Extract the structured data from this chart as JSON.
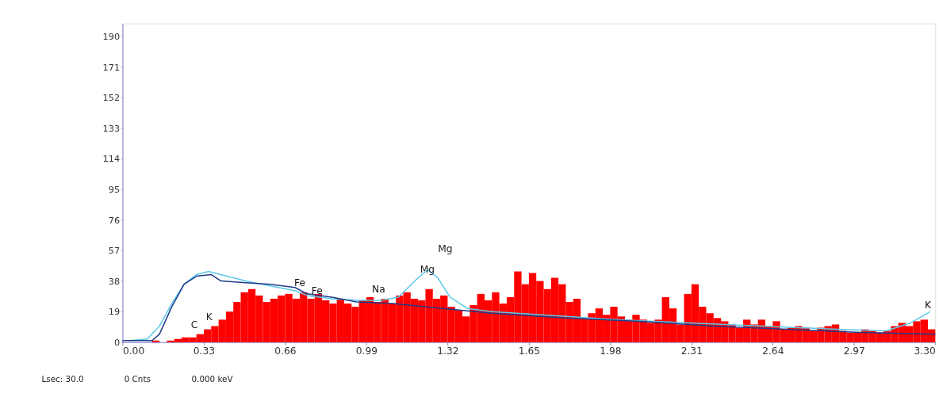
{
  "chart_data": {
    "type": "histogram",
    "xlim": [
      0,
      3.3
    ],
    "ylim": [
      0,
      198
    ],
    "xticks": [
      {
        "value": 0,
        "label": "0.00"
      },
      0.33,
      0.66,
      0.99,
      1.32,
      1.65,
      1.98,
      2.31,
      2.64,
      2.97,
      {
        "value": 3.3,
        "label": "3.30"
      }
    ],
    "yticks": [
      0,
      19,
      38,
      57,
      76,
      95,
      114,
      133,
      152,
      171,
      190
    ],
    "grid": false,
    "color": "#ff0000",
    "bins": [
      0,
      0.03,
      0.06,
      0.09,
      0.12,
      0.15,
      0.18,
      0.21,
      0.24,
      0.27,
      0.3,
      0.33,
      0.36,
      0.39,
      0.42,
      0.45,
      0.48,
      0.51,
      0.54,
      0.57,
      0.6,
      0.63,
      0.66,
      0.69,
      0.72,
      0.75,
      0.78,
      0.81,
      0.84,
      0.87,
      0.9,
      0.93,
      0.96,
      0.99,
      1.02,
      1.05,
      1.08,
      1.11,
      1.14,
      1.17,
      1.2,
      1.23,
      1.26,
      1.29,
      1.32,
      1.35,
      1.38,
      1.41,
      1.44,
      1.47,
      1.5,
      1.53,
      1.56,
      1.59,
      1.62,
      1.65,
      1.68,
      1.71,
      1.74,
      1.77,
      1.8,
      1.83,
      1.86,
      1.89,
      1.92,
      1.95,
      1.98,
      2.01,
      2.04,
      2.07,
      2.1,
      2.13,
      2.16,
      2.19,
      2.22,
      2.25,
      2.28,
      2.31,
      2.34,
      2.37,
      2.4,
      2.43,
      2.46,
      2.49,
      2.52,
      2.55,
      2.58,
      2.61,
      2.64,
      2.67,
      2.7,
      2.73,
      2.76,
      2.79,
      2.82,
      2.85,
      2.88,
      2.91,
      2.94,
      2.97,
      3.0,
      3.03,
      3.06,
      3.09,
      3.12,
      3.15,
      3.18,
      3.21,
      3.24,
      3.27,
      3.3
    ],
    "values": [
      0,
      0,
      0,
      0,
      1,
      0,
      1,
      2,
      3,
      3,
      5,
      8,
      10,
      14,
      19,
      25,
      31,
      33,
      29,
      25,
      27,
      29,
      30,
      27,
      31,
      27,
      30,
      26,
      24,
      27,
      24,
      22,
      26,
      28,
      25,
      27,
      24,
      29,
      31,
      27,
      26,
      33,
      27,
      29,
      22,
      20,
      16,
      23,
      30,
      26,
      31,
      24,
      28,
      44,
      36,
      43,
      38,
      33,
      40,
      36,
      25,
      27,
      15,
      18,
      21,
      17,
      22,
      16,
      14,
      17,
      14,
      12,
      14,
      28,
      21,
      11,
      30,
      36,
      22,
      18,
      15,
      13,
      11,
      9,
      14,
      11,
      14,
      10,
      13,
      8,
      9,
      10,
      9,
      7,
      9,
      10,
      11,
      7,
      6,
      6,
      8,
      7,
      6,
      7,
      10,
      12,
      10,
      13,
      14,
      8
    ],
    "series": [
      {
        "type": "line",
        "color": "#5bc8e8",
        "x": [
          0.03,
          0.1,
          0.15,
          0.2,
          0.25,
          0.3,
          0.35,
          0.4,
          0.5,
          0.6,
          0.7,
          0.75,
          0.85,
          0.95,
          1.05,
          1.12,
          1.2,
          1.24,
          1.28,
          1.33,
          1.4,
          1.5,
          1.7,
          2.0,
          2.3,
          2.6,
          2.9,
          3.1,
          3.2,
          3.28
        ],
        "values": [
          1,
          2,
          10,
          24,
          36,
          42,
          44,
          42,
          38,
          35,
          32,
          29,
          27,
          26,
          26,
          28,
          40,
          45,
          40,
          28,
          21,
          19,
          17,
          14,
          12,
          10,
          8,
          7,
          12,
          19
        ]
      },
      {
        "type": "line",
        "color": "#1f3c88",
        "x": [
          0,
          0.12,
          0.15,
          0.2,
          0.25,
          0.3,
          0.36,
          0.4,
          0.5,
          0.6,
          0.7,
          0.75,
          0.85,
          0.95,
          1.1,
          1.3,
          1.5,
          1.8,
          2.1,
          2.4,
          2.7,
          3.0,
          3.3
        ],
        "values": [
          1,
          1,
          5,
          22,
          36,
          41,
          42,
          38,
          37,
          36,
          34,
          30,
          28,
          25,
          24,
          21,
          18,
          15,
          13,
          10,
          8,
          6,
          5
        ]
      }
    ],
    "annotations": [
      "C",
      "K",
      "Mg",
      "Mg",
      {
        "text": "Fe",
        "x": 0.72,
        "y": 33
      },
      {
        "text": "Fe",
        "x": 0.79,
        "y": 28
      },
      {
        "text": "Na",
        "x": 1.04,
        "y": 29
      },
      {
        "text": "K",
        "x": 3.27,
        "y": 19
      },
      "Lsec: 30.0",
      "0 Cnts",
      "0.000 keV"
    ]
  }
}
